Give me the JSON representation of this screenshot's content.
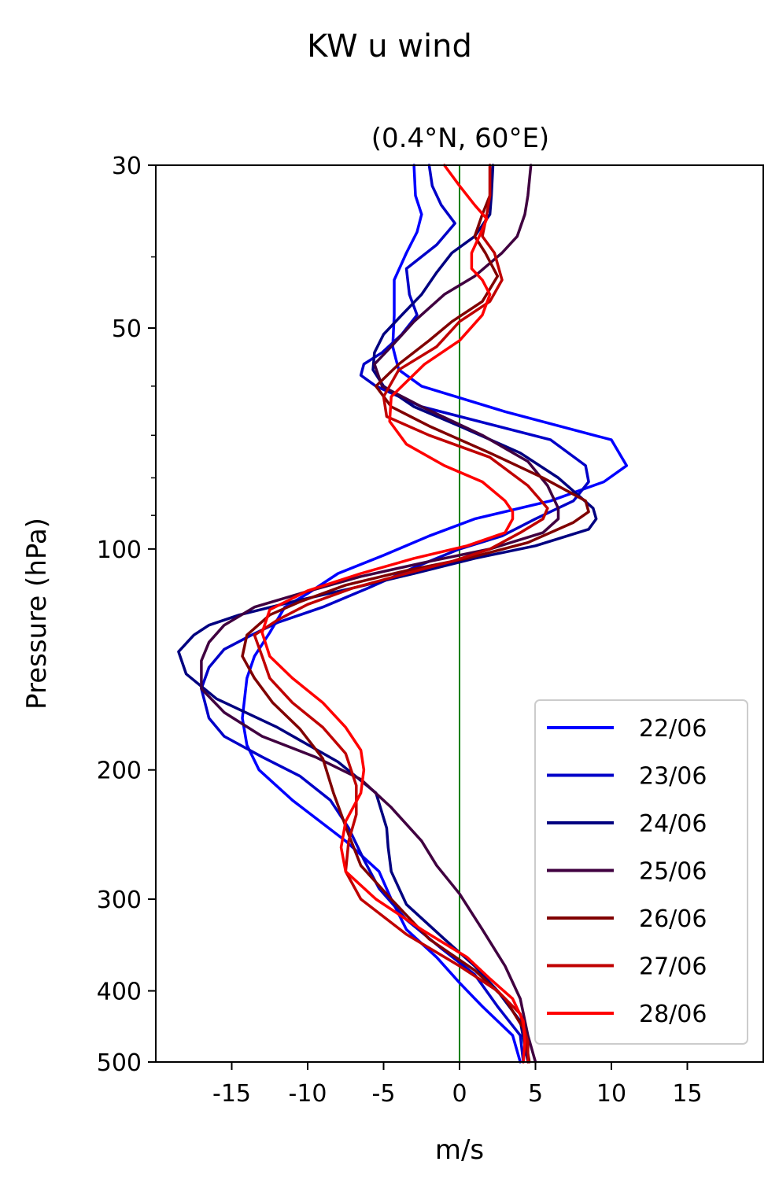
{
  "figure_title": "KW u wind",
  "chart_data": {
    "type": "line",
    "title": "(0.4°N, 60°E)",
    "xlabel": "m/s",
    "ylabel": "Pressure (hPa)",
    "xlim": [
      -20,
      20
    ],
    "ylim": [
      500,
      30
    ],
    "yscale": "log",
    "xticks": [
      -15,
      -10,
      -5,
      0,
      5,
      10,
      15
    ],
    "xtick_labels": [
      "-15",
      "-10",
      "-5",
      "0",
      "5",
      "10",
      "15"
    ],
    "yticks": [
      30,
      50,
      100,
      200,
      300,
      400,
      500
    ],
    "ytick_labels": [
      "30",
      "50",
      "100",
      "200",
      "300",
      "400",
      "500"
    ],
    "yminor_ticks": [
      40,
      60,
      70,
      80,
      90
    ],
    "reference_line": {
      "x": 0,
      "color": "#008000"
    },
    "legend_position": "lower right",
    "grid": false,
    "series": [
      {
        "name": "22/06",
        "color": "#0000ff",
        "points": [
          [
            -3,
            30
          ],
          [
            -2.9,
            33
          ],
          [
            -2.5,
            35
          ],
          [
            -2.8,
            37
          ],
          [
            -3.5,
            39.5
          ],
          [
            -4.3,
            43
          ],
          [
            -4.3,
            48
          ],
          [
            -4.4,
            53
          ],
          [
            -4.2,
            55
          ],
          [
            -4,
            57
          ],
          [
            -2.5,
            60
          ],
          [
            3,
            65
          ],
          [
            10,
            71
          ],
          [
            11,
            77
          ],
          [
            9.5,
            81
          ],
          [
            6,
            86
          ],
          [
            1,
            91
          ],
          [
            -2,
            96
          ],
          [
            -5,
            102
          ],
          [
            -8,
            108
          ],
          [
            -10,
            115
          ],
          [
            -11.5,
            120
          ],
          [
            -12.5,
            130
          ],
          [
            -13.5,
            140
          ],
          [
            -14,
            150
          ],
          [
            -14.3,
            170
          ],
          [
            -14,
            185
          ],
          [
            -13.2,
            200
          ],
          [
            -11,
            220
          ],
          [
            -7.5,
            250
          ],
          [
            -5.3,
            275
          ],
          [
            -4.5,
            300
          ],
          [
            -3.5,
            330
          ],
          [
            -1.5,
            360
          ],
          [
            0,
            390
          ],
          [
            1.5,
            420
          ],
          [
            3.5,
            460
          ],
          [
            4,
            500
          ]
        ]
      },
      {
        "name": "23/06",
        "color": "#0000c8",
        "points": [
          [
            -2,
            30
          ],
          [
            -1.8,
            32
          ],
          [
            -1.2,
            34
          ],
          [
            -0.3,
            36
          ],
          [
            -1.5,
            38.5
          ],
          [
            -3.5,
            41.5
          ],
          [
            -3.3,
            45
          ],
          [
            -2.8,
            48
          ],
          [
            -3.8,
            51
          ],
          [
            -5.1,
            54
          ],
          [
            -6.3,
            56
          ],
          [
            -6.5,
            58
          ],
          [
            -5.5,
            60
          ],
          [
            -2.5,
            64
          ],
          [
            6,
            71
          ],
          [
            8.3,
            77
          ],
          [
            8.5,
            81
          ],
          [
            7.5,
            86
          ],
          [
            5,
            91
          ],
          [
            2.8,
            96
          ],
          [
            0,
            100
          ],
          [
            -3,
            106
          ],
          [
            -6,
            113
          ],
          [
            -9,
            120
          ],
          [
            -12,
            126
          ],
          [
            -13.7,
            131
          ],
          [
            -15.5,
            137
          ],
          [
            -16.5,
            145
          ],
          [
            -17,
            155
          ],
          [
            -16.5,
            170
          ],
          [
            -15.5,
            180
          ],
          [
            -13,
            192
          ],
          [
            -10.5,
            204
          ],
          [
            -8.5,
            220
          ],
          [
            -7.3,
            240
          ],
          [
            -6.3,
            265
          ],
          [
            -5.3,
            290
          ],
          [
            -3.5,
            320
          ],
          [
            -1.2,
            350
          ],
          [
            1,
            380
          ],
          [
            2.5,
            420
          ],
          [
            4,
            460
          ],
          [
            4.2,
            500
          ]
        ]
      },
      {
        "name": "24/06",
        "color": "#000080",
        "points": [
          [
            2.2,
            30
          ],
          [
            2.1,
            33
          ],
          [
            2,
            35
          ],
          [
            1,
            37.5
          ],
          [
            -0.5,
            39.5
          ],
          [
            -1.5,
            42
          ],
          [
            -2.5,
            45
          ],
          [
            -3.8,
            48
          ],
          [
            -5,
            51
          ],
          [
            -5.6,
            54
          ],
          [
            -5.7,
            57
          ],
          [
            -5,
            60
          ],
          [
            -3,
            64
          ],
          [
            0,
            68
          ],
          [
            4,
            74
          ],
          [
            6.5,
            80
          ],
          [
            8.8,
            88
          ],
          [
            9,
            91
          ],
          [
            8.5,
            94
          ],
          [
            5,
            99
          ],
          [
            1,
            103
          ],
          [
            -3,
            108
          ],
          [
            -7,
            113
          ],
          [
            -11,
            118
          ],
          [
            -14.5,
            123
          ],
          [
            -16.5,
            127
          ],
          [
            -17.5,
            131
          ],
          [
            -18.5,
            138
          ],
          [
            -18,
            148
          ],
          [
            -16,
            160
          ],
          [
            -12,
            175
          ],
          [
            -8,
            195
          ],
          [
            -5.5,
            215
          ],
          [
            -4.8,
            240
          ],
          [
            -4.7,
            255
          ],
          [
            -4.5,
            275
          ],
          [
            -3.5,
            305
          ],
          [
            -1,
            340
          ],
          [
            1,
            370
          ],
          [
            2.5,
            400
          ],
          [
            4,
            440
          ],
          [
            4.5,
            500
          ]
        ]
      },
      {
        "name": "25/06",
        "color": "#400040",
        "points": [
          [
            4.7,
            30
          ],
          [
            4.5,
            33
          ],
          [
            4.3,
            35
          ],
          [
            3.8,
            37.5
          ],
          [
            2.8,
            39.5
          ],
          [
            1,
            42.5
          ],
          [
            -1,
            45
          ],
          [
            -3,
            49
          ],
          [
            -4.5,
            53
          ],
          [
            -5.6,
            56
          ],
          [
            -5.1,
            60
          ],
          [
            -2.5,
            64
          ],
          [
            1.5,
            70
          ],
          [
            4.5,
            76
          ],
          [
            5.8,
            82
          ],
          [
            6.5,
            88
          ],
          [
            6.5,
            91
          ],
          [
            5.5,
            95
          ],
          [
            2,
            100
          ],
          [
            -2,
            104
          ],
          [
            -6.5,
            109
          ],
          [
            -10.5,
            115
          ],
          [
            -13.5,
            120
          ],
          [
            -15.5,
            127
          ],
          [
            -16.5,
            134
          ],
          [
            -17,
            142
          ],
          [
            -17,
            155
          ],
          [
            -15.5,
            167
          ],
          [
            -13,
            180
          ],
          [
            -9.5,
            192
          ],
          [
            -6.5,
            206
          ],
          [
            -4.5,
            225
          ],
          [
            -2.5,
            250
          ],
          [
            -1.5,
            270
          ],
          [
            0,
            295
          ],
          [
            1.5,
            330
          ],
          [
            3,
            370
          ],
          [
            4,
            410
          ],
          [
            4.5,
            460
          ],
          [
            5,
            500
          ]
        ]
      },
      {
        "name": "26/06",
        "color": "#800000",
        "points": [
          [
            2,
            30
          ],
          [
            2,
            33
          ],
          [
            1.5,
            35
          ],
          [
            1,
            37.5
          ],
          [
            1.7,
            39.5
          ],
          [
            2.5,
            42.5
          ],
          [
            1.5,
            46
          ],
          [
            -0.5,
            49
          ],
          [
            -2,
            52
          ],
          [
            -4,
            56
          ],
          [
            -5.5,
            60
          ],
          [
            -4.5,
            64
          ],
          [
            -2,
            68
          ],
          [
            2,
            74
          ],
          [
            5.5,
            80
          ],
          [
            8.3,
            86
          ],
          [
            8.5,
            89
          ],
          [
            7.5,
            92
          ],
          [
            4.5,
            98
          ],
          [
            0.5,
            103
          ],
          [
            -3.5,
            107
          ],
          [
            -7.5,
            112
          ],
          [
            -10.5,
            118
          ],
          [
            -12.5,
            123
          ],
          [
            -14,
            131
          ],
          [
            -14.3,
            140
          ],
          [
            -13.5,
            150
          ],
          [
            -12.3,
            162
          ],
          [
            -10.5,
            176
          ],
          [
            -9,
            193
          ],
          [
            -8.3,
            215
          ],
          [
            -7.3,
            245
          ],
          [
            -6.5,
            270
          ],
          [
            -4.5,
            300
          ],
          [
            -2,
            340
          ],
          [
            1,
            375
          ],
          [
            3,
            410
          ],
          [
            4.2,
            450
          ],
          [
            4.6,
            500
          ]
        ]
      },
      {
        "name": "27/06",
        "color": "#c00000",
        "points": [
          [
            2,
            30
          ],
          [
            2,
            33
          ],
          [
            1.8,
            35
          ],
          [
            1.5,
            37.5
          ],
          [
            2.3,
            39.5
          ],
          [
            2.8,
            43
          ],
          [
            2,
            46
          ],
          [
            0,
            49
          ],
          [
            -1.5,
            53
          ],
          [
            -4,
            57
          ],
          [
            -5,
            62
          ],
          [
            -4.8,
            66
          ],
          [
            -2,
            70
          ],
          [
            2,
            75
          ],
          [
            4.5,
            82
          ],
          [
            5.8,
            88
          ],
          [
            5.5,
            91
          ],
          [
            4,
            95
          ],
          [
            2,
            100
          ],
          [
            -0.5,
            104
          ],
          [
            -3.5,
            108
          ],
          [
            -7,
            113
          ],
          [
            -10,
            119
          ],
          [
            -12,
            125
          ],
          [
            -13.5,
            131
          ],
          [
            -13,
            140
          ],
          [
            -12.5,
            150
          ],
          [
            -11,
            162
          ],
          [
            -9,
            175
          ],
          [
            -7.5,
            190
          ],
          [
            -6.8,
            210
          ],
          [
            -6.8,
            230
          ],
          [
            -7.3,
            250
          ],
          [
            -7.5,
            275
          ],
          [
            -6.5,
            300
          ],
          [
            -3.5,
            335
          ],
          [
            0,
            370
          ],
          [
            2.5,
            400
          ],
          [
            4,
            430
          ],
          [
            4.5,
            470
          ],
          [
            4.5,
            500
          ]
        ]
      },
      {
        "name": "28/06",
        "color": "#ff0000",
        "points": [
          [
            -1,
            30
          ],
          [
            0,
            32
          ],
          [
            1,
            34
          ],
          [
            1.8,
            35.5
          ],
          [
            1.3,
            37.5
          ],
          [
            0.8,
            39.5
          ],
          [
            0.8,
            41.5
          ],
          [
            1.5,
            43
          ],
          [
            2,
            45
          ],
          [
            1.5,
            48
          ],
          [
            0,
            52
          ],
          [
            -2.3,
            56
          ],
          [
            -4.5,
            62
          ],
          [
            -4.6,
            67
          ],
          [
            -3.5,
            72
          ],
          [
            -1,
            77
          ],
          [
            1.5,
            81
          ],
          [
            3,
            86
          ],
          [
            3.5,
            89
          ],
          [
            3.5,
            91
          ],
          [
            3,
            95
          ],
          [
            0.5,
            99
          ],
          [
            -3,
            103
          ],
          [
            -6.5,
            108
          ],
          [
            -10,
            114
          ],
          [
            -12.5,
            121
          ],
          [
            -13,
            130
          ],
          [
            -12.5,
            140
          ],
          [
            -11,
            150
          ],
          [
            -9,
            162
          ],
          [
            -7.5,
            175
          ],
          [
            -6.5,
            188
          ],
          [
            -6.3,
            200
          ],
          [
            -6.5,
            215
          ],
          [
            -7.5,
            235
          ],
          [
            -7.8,
            255
          ],
          [
            -7.5,
            275
          ],
          [
            -5.5,
            300
          ],
          [
            -2.5,
            330
          ],
          [
            0.5,
            360
          ],
          [
            2,
            385
          ],
          [
            3.5,
            410
          ],
          [
            4.2,
            440
          ],
          [
            4.3,
            470
          ],
          [
            4.2,
            500
          ]
        ]
      }
    ]
  }
}
